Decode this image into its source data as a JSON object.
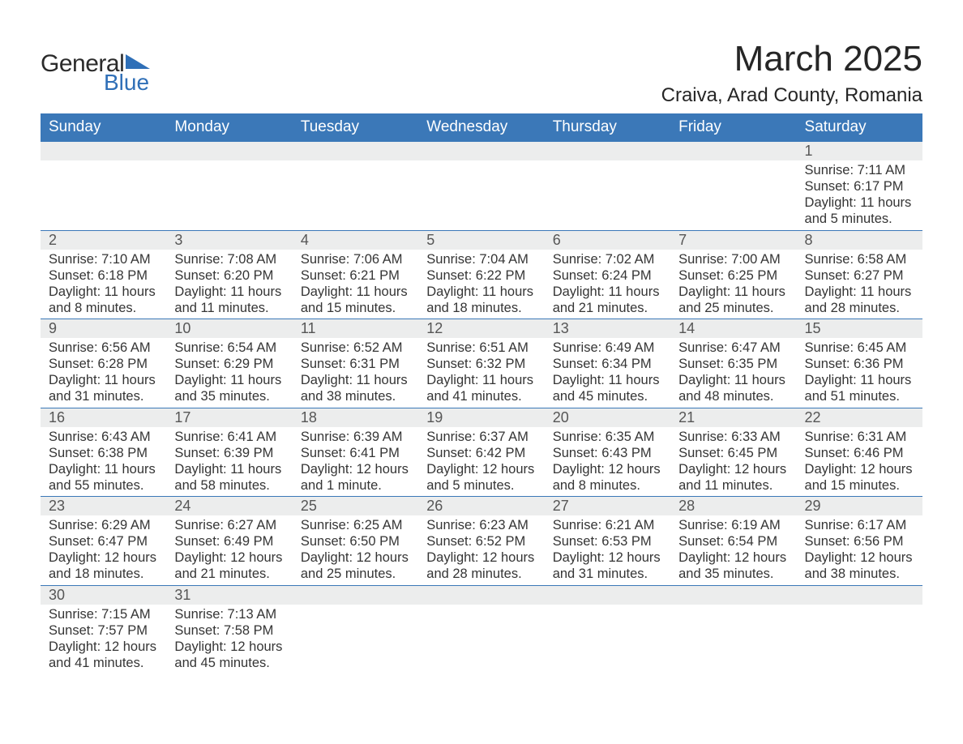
{
  "brand": {
    "name_main": "General",
    "name_sub": "Blue",
    "text_color": "#2b2b2b",
    "accent_color": "#2f6fb7"
  },
  "title": "March 2025",
  "location": "Craiva, Arad County, Romania",
  "colors": {
    "header_bg": "#3b78b8",
    "header_text": "#ffffff",
    "daynum_bg": "#eceded",
    "daynum_text": "#565656",
    "body_text": "#353535",
    "row_border": "#3b78b8",
    "page_bg": "#ffffff"
  },
  "fonts": {
    "title_size": 44,
    "location_size": 24,
    "dow_size": 19,
    "daynum_size": 18,
    "body_size": 16.5
  },
  "days_of_week": [
    "Sunday",
    "Monday",
    "Tuesday",
    "Wednesday",
    "Thursday",
    "Friday",
    "Saturday"
  ],
  "weeks": [
    [
      null,
      null,
      null,
      null,
      null,
      null,
      {
        "n": "1",
        "sunrise": "Sunrise: 7:11 AM",
        "sunset": "Sunset: 6:17 PM",
        "daylight": "Daylight: 11 hours and 5 minutes."
      }
    ],
    [
      {
        "n": "2",
        "sunrise": "Sunrise: 7:10 AM",
        "sunset": "Sunset: 6:18 PM",
        "daylight": "Daylight: 11 hours and 8 minutes."
      },
      {
        "n": "3",
        "sunrise": "Sunrise: 7:08 AM",
        "sunset": "Sunset: 6:20 PM",
        "daylight": "Daylight: 11 hours and 11 minutes."
      },
      {
        "n": "4",
        "sunrise": "Sunrise: 7:06 AM",
        "sunset": "Sunset: 6:21 PM",
        "daylight": "Daylight: 11 hours and 15 minutes."
      },
      {
        "n": "5",
        "sunrise": "Sunrise: 7:04 AM",
        "sunset": "Sunset: 6:22 PM",
        "daylight": "Daylight: 11 hours and 18 minutes."
      },
      {
        "n": "6",
        "sunrise": "Sunrise: 7:02 AM",
        "sunset": "Sunset: 6:24 PM",
        "daylight": "Daylight: 11 hours and 21 minutes."
      },
      {
        "n": "7",
        "sunrise": "Sunrise: 7:00 AM",
        "sunset": "Sunset: 6:25 PM",
        "daylight": "Daylight: 11 hours and 25 minutes."
      },
      {
        "n": "8",
        "sunrise": "Sunrise: 6:58 AM",
        "sunset": "Sunset: 6:27 PM",
        "daylight": "Daylight: 11 hours and 28 minutes."
      }
    ],
    [
      {
        "n": "9",
        "sunrise": "Sunrise: 6:56 AM",
        "sunset": "Sunset: 6:28 PM",
        "daylight": "Daylight: 11 hours and 31 minutes."
      },
      {
        "n": "10",
        "sunrise": "Sunrise: 6:54 AM",
        "sunset": "Sunset: 6:29 PM",
        "daylight": "Daylight: 11 hours and 35 minutes."
      },
      {
        "n": "11",
        "sunrise": "Sunrise: 6:52 AM",
        "sunset": "Sunset: 6:31 PM",
        "daylight": "Daylight: 11 hours and 38 minutes."
      },
      {
        "n": "12",
        "sunrise": "Sunrise: 6:51 AM",
        "sunset": "Sunset: 6:32 PM",
        "daylight": "Daylight: 11 hours and 41 minutes."
      },
      {
        "n": "13",
        "sunrise": "Sunrise: 6:49 AM",
        "sunset": "Sunset: 6:34 PM",
        "daylight": "Daylight: 11 hours and 45 minutes."
      },
      {
        "n": "14",
        "sunrise": "Sunrise: 6:47 AM",
        "sunset": "Sunset: 6:35 PM",
        "daylight": "Daylight: 11 hours and 48 minutes."
      },
      {
        "n": "15",
        "sunrise": "Sunrise: 6:45 AM",
        "sunset": "Sunset: 6:36 PM",
        "daylight": "Daylight: 11 hours and 51 minutes."
      }
    ],
    [
      {
        "n": "16",
        "sunrise": "Sunrise: 6:43 AM",
        "sunset": "Sunset: 6:38 PM",
        "daylight": "Daylight: 11 hours and 55 minutes."
      },
      {
        "n": "17",
        "sunrise": "Sunrise: 6:41 AM",
        "sunset": "Sunset: 6:39 PM",
        "daylight": "Daylight: 11 hours and 58 minutes."
      },
      {
        "n": "18",
        "sunrise": "Sunrise: 6:39 AM",
        "sunset": "Sunset: 6:41 PM",
        "daylight": "Daylight: 12 hours and 1 minute."
      },
      {
        "n": "19",
        "sunrise": "Sunrise: 6:37 AM",
        "sunset": "Sunset: 6:42 PM",
        "daylight": "Daylight: 12 hours and 5 minutes."
      },
      {
        "n": "20",
        "sunrise": "Sunrise: 6:35 AM",
        "sunset": "Sunset: 6:43 PM",
        "daylight": "Daylight: 12 hours and 8 minutes."
      },
      {
        "n": "21",
        "sunrise": "Sunrise: 6:33 AM",
        "sunset": "Sunset: 6:45 PM",
        "daylight": "Daylight: 12 hours and 11 minutes."
      },
      {
        "n": "22",
        "sunrise": "Sunrise: 6:31 AM",
        "sunset": "Sunset: 6:46 PM",
        "daylight": "Daylight: 12 hours and 15 minutes."
      }
    ],
    [
      {
        "n": "23",
        "sunrise": "Sunrise: 6:29 AM",
        "sunset": "Sunset: 6:47 PM",
        "daylight": "Daylight: 12 hours and 18 minutes."
      },
      {
        "n": "24",
        "sunrise": "Sunrise: 6:27 AM",
        "sunset": "Sunset: 6:49 PM",
        "daylight": "Daylight: 12 hours and 21 minutes."
      },
      {
        "n": "25",
        "sunrise": "Sunrise: 6:25 AM",
        "sunset": "Sunset: 6:50 PM",
        "daylight": "Daylight: 12 hours and 25 minutes."
      },
      {
        "n": "26",
        "sunrise": "Sunrise: 6:23 AM",
        "sunset": "Sunset: 6:52 PM",
        "daylight": "Daylight: 12 hours and 28 minutes."
      },
      {
        "n": "27",
        "sunrise": "Sunrise: 6:21 AM",
        "sunset": "Sunset: 6:53 PM",
        "daylight": "Daylight: 12 hours and 31 minutes."
      },
      {
        "n": "28",
        "sunrise": "Sunrise: 6:19 AM",
        "sunset": "Sunset: 6:54 PM",
        "daylight": "Daylight: 12 hours and 35 minutes."
      },
      {
        "n": "29",
        "sunrise": "Sunrise: 6:17 AM",
        "sunset": "Sunset: 6:56 PM",
        "daylight": "Daylight: 12 hours and 38 minutes."
      }
    ],
    [
      {
        "n": "30",
        "sunrise": "Sunrise: 7:15 AM",
        "sunset": "Sunset: 7:57 PM",
        "daylight": "Daylight: 12 hours and 41 minutes."
      },
      {
        "n": "31",
        "sunrise": "Sunrise: 7:13 AM",
        "sunset": "Sunset: 7:58 PM",
        "daylight": "Daylight: 12 hours and 45 minutes."
      },
      null,
      null,
      null,
      null,
      null
    ]
  ]
}
